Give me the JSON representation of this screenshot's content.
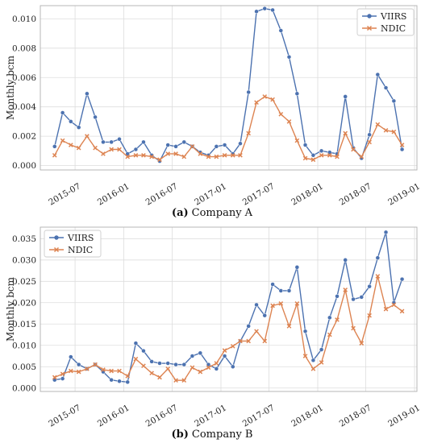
{
  "chart_data": [
    {
      "type": "line",
      "caption_prefix": "(a)",
      "caption_label": "Company A",
      "xlabel": "",
      "ylabel": "Monthly bcm",
      "ylim": [
        -0.0003,
        0.0109
      ],
      "yticks": [
        0.0,
        0.002,
        0.004,
        0.006,
        0.008,
        0.01
      ],
      "ytick_labels": [
        "0.000",
        "0.002",
        "0.004",
        "0.006",
        "0.008",
        "0.010"
      ],
      "xlim": [
        "2015-02-20",
        "2019-01-10"
      ],
      "xticks": [
        "2015-07-01",
        "2016-01-01",
        "2016-07-01",
        "2017-01-01",
        "2017-07-01",
        "2018-01-01",
        "2018-07-01",
        "2019-01-01"
      ],
      "xtick_labels": [
        "2015-07",
        "2016-01",
        "2016-07",
        "2017-01",
        "2017-07",
        "2018-01",
        "2018-07",
        "2019-01"
      ],
      "grid": true,
      "legend_position": "top-right",
      "x": [
        "2015-04",
        "2015-05",
        "2015-06",
        "2015-07",
        "2015-08",
        "2015-09",
        "2015-10",
        "2015-11",
        "2015-12",
        "2016-01",
        "2016-02",
        "2016-03",
        "2016-04",
        "2016-05",
        "2016-06",
        "2016-07",
        "2016-08",
        "2016-09",
        "2016-10",
        "2016-11",
        "2016-12",
        "2017-01",
        "2017-02",
        "2017-03",
        "2017-04",
        "2017-05",
        "2017-06",
        "2017-07",
        "2017-08",
        "2017-09",
        "2017-10",
        "2017-11",
        "2017-12",
        "2018-01",
        "2018-02",
        "2018-03",
        "2018-04",
        "2018-05",
        "2018-06",
        "2018-07",
        "2018-08",
        "2018-09",
        "2018-10",
        "2018-11"
      ],
      "series": [
        {
          "name": "VIIRS",
          "color": "#4c72b0",
          "marker": "circle",
          "values": [
            0.0013,
            0.0036,
            0.003,
            0.0026,
            0.0049,
            0.0033,
            0.0016,
            0.0016,
            0.0018,
            0.0008,
            0.0011,
            0.0016,
            0.0007,
            0.0003,
            0.0014,
            0.0013,
            0.0016,
            0.0013,
            0.0009,
            0.0007,
            0.0013,
            0.0014,
            0.0008,
            0.0015,
            0.005,
            0.0105,
            0.0107,
            0.0106,
            0.0092,
            0.0074,
            0.0049,
            0.0014,
            0.0007,
            0.001,
            0.0009,
            0.0008,
            0.0047,
            0.0012,
            0.0005,
            0.0021,
            0.0062,
            0.0053,
            0.0044,
            0.0011
          ]
        },
        {
          "name": "NDIC",
          "color": "#dd8452",
          "marker": "x",
          "values": [
            0.0007,
            0.0017,
            0.0014,
            0.0012,
            0.002,
            0.0012,
            0.0008,
            0.0011,
            0.0011,
            0.0006,
            0.0007,
            0.0007,
            0.0006,
            0.0004,
            0.0008,
            0.0008,
            0.0006,
            0.0013,
            0.0008,
            0.0006,
            0.0006,
            0.0007,
            0.0007,
            0.0007,
            0.0022,
            0.0043,
            0.0047,
            0.0045,
            0.0035,
            0.003,
            0.0017,
            0.0005,
            0.0004,
            0.0007,
            0.0007,
            0.0006,
            0.0022,
            0.0011,
            0.0006,
            0.0016,
            0.0028,
            0.0024,
            0.0023,
            0.0014
          ]
        }
      ]
    },
    {
      "type": "line",
      "caption_prefix": "(b)",
      "caption_label": "Company B",
      "xlabel": "",
      "ylabel": "Monthly bcm",
      "ylim": [
        -0.0008,
        0.0377
      ],
      "yticks": [
        0.0,
        0.005,
        0.01,
        0.015,
        0.02,
        0.025,
        0.03,
        0.035
      ],
      "ytick_labels": [
        "0.000",
        "0.005",
        "0.010",
        "0.015",
        "0.020",
        "0.025",
        "0.030",
        "0.035"
      ],
      "xlim": [
        "2015-02-20",
        "2019-01-10"
      ],
      "xticks": [
        "2015-07-01",
        "2016-01-01",
        "2016-07-01",
        "2017-01-01",
        "2017-07-01",
        "2018-01-01",
        "2018-07-01",
        "2019-01-01"
      ],
      "xtick_labels": [
        "2015-07",
        "2016-01",
        "2016-07",
        "2017-01",
        "2017-07",
        "2018-01",
        "2018-07",
        "2019-01"
      ],
      "grid": true,
      "legend_position": "top-left",
      "x": [
        "2015-04",
        "2015-05",
        "2015-06",
        "2015-07",
        "2015-08",
        "2015-09",
        "2015-10",
        "2015-11",
        "2015-12",
        "2016-01",
        "2016-02",
        "2016-03",
        "2016-04",
        "2016-05",
        "2016-06",
        "2016-07",
        "2016-08",
        "2016-09",
        "2016-10",
        "2016-11",
        "2016-12",
        "2017-01",
        "2017-02",
        "2017-03",
        "2017-04",
        "2017-05",
        "2017-06",
        "2017-07",
        "2017-08",
        "2017-09",
        "2017-10",
        "2017-11",
        "2017-12",
        "2018-01",
        "2018-02",
        "2018-03",
        "2018-04",
        "2018-05",
        "2018-06",
        "2018-07",
        "2018-08",
        "2018-09",
        "2018-10",
        "2018-11"
      ],
      "series": [
        {
          "name": "VIIRS",
          "color": "#4c72b0",
          "marker": "circle",
          "values": [
            0.0019,
            0.0022,
            0.0073,
            0.0055,
            0.0045,
            0.0055,
            0.0038,
            0.0019,
            0.0016,
            0.0014,
            0.0105,
            0.0087,
            0.0062,
            0.0058,
            0.0058,
            0.0055,
            0.0055,
            0.0075,
            0.0082,
            0.0055,
            0.0045,
            0.0075,
            0.005,
            0.011,
            0.0145,
            0.0195,
            0.017,
            0.0243,
            0.0228,
            0.0228,
            0.0283,
            0.0133,
            0.0065,
            0.009,
            0.0165,
            0.0215,
            0.03,
            0.0208,
            0.0213,
            0.0238,
            0.0305,
            0.0365,
            0.02,
            0.0255
          ]
        },
        {
          "name": "NDIC",
          "color": "#dd8452",
          "marker": "x",
          "values": [
            0.0025,
            0.0033,
            0.004,
            0.0038,
            0.0045,
            0.0055,
            0.0043,
            0.004,
            0.004,
            0.0028,
            0.0068,
            0.0052,
            0.0035,
            0.0025,
            0.0045,
            0.0018,
            0.0018,
            0.0048,
            0.0038,
            0.0048,
            0.0058,
            0.0088,
            0.0098,
            0.011,
            0.011,
            0.0133,
            0.011,
            0.0193,
            0.0198,
            0.0145,
            0.0198,
            0.0075,
            0.0045,
            0.006,
            0.0125,
            0.016,
            0.023,
            0.014,
            0.0105,
            0.017,
            0.0262,
            0.0185,
            0.0195,
            0.018
          ]
        }
      ]
    }
  ]
}
